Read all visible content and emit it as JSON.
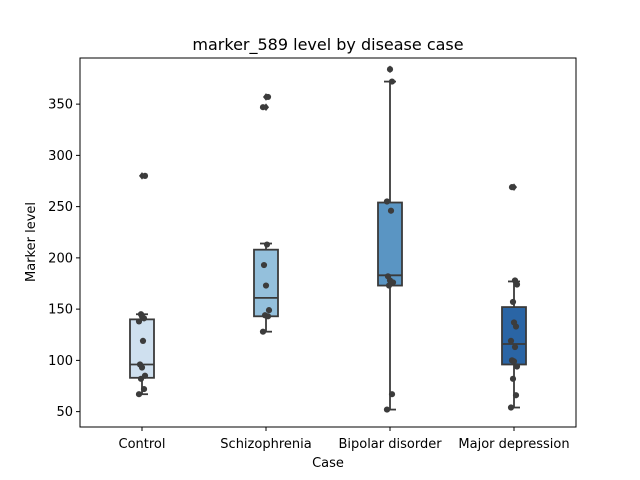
{
  "chart_data": {
    "type": "box",
    "title": "marker_589 level by disease case",
    "xlabel": "Case",
    "ylabel": "Marker level",
    "ylim": [
      35,
      395
    ],
    "yticks": [
      50,
      100,
      150,
      200,
      250,
      300,
      350
    ],
    "grid": false,
    "legend": "none",
    "categories": [
      "Control",
      "Schizophrenia",
      "Bipolar disorder",
      "Major depression"
    ],
    "colors": [
      "#cfe0ef",
      "#94c0dc",
      "#5a95c3",
      "#2a65a5"
    ],
    "boxes": [
      {
        "category": "Control",
        "whisker_low": 67,
        "q1": 83,
        "median": 96,
        "q3": 140,
        "whisker_high": 145,
        "outliers": [
          280
        ]
      },
      {
        "category": "Schizophrenia",
        "whisker_low": 128,
        "q1": 143,
        "median": 161,
        "q3": 208,
        "whisker_high": 214,
        "outliers": [
          347,
          357
        ]
      },
      {
        "category": "Bipolar disorder",
        "whisker_low": 52,
        "q1": 173,
        "median": 183,
        "q3": 254,
        "whisker_high": 372,
        "outliers": [
          384
        ]
      },
      {
        "category": "Major depression",
        "whisker_low": 54,
        "q1": 96,
        "median": 116,
        "q3": 152,
        "whisker_high": 177,
        "outliers": [
          269
        ]
      }
    ],
    "points": [
      {
        "category": "Control",
        "values": [
          67,
          72,
          82,
          85,
          93,
          96,
          119,
          138,
          141,
          143,
          145,
          280
        ]
      },
      {
        "category": "Schizophrenia",
        "values": [
          128,
          143,
          144,
          149,
          173,
          193,
          213,
          347,
          357
        ]
      },
      {
        "category": "Bipolar disorder",
        "values": [
          52,
          67,
          173,
          176,
          178,
          182,
          246,
          255,
          372,
          384
        ]
      },
      {
        "category": "Major depression",
        "values": [
          54,
          66,
          82,
          94,
          99,
          100,
          113,
          119,
          133,
          137,
          157,
          174,
          178,
          269
        ]
      }
    ]
  }
}
